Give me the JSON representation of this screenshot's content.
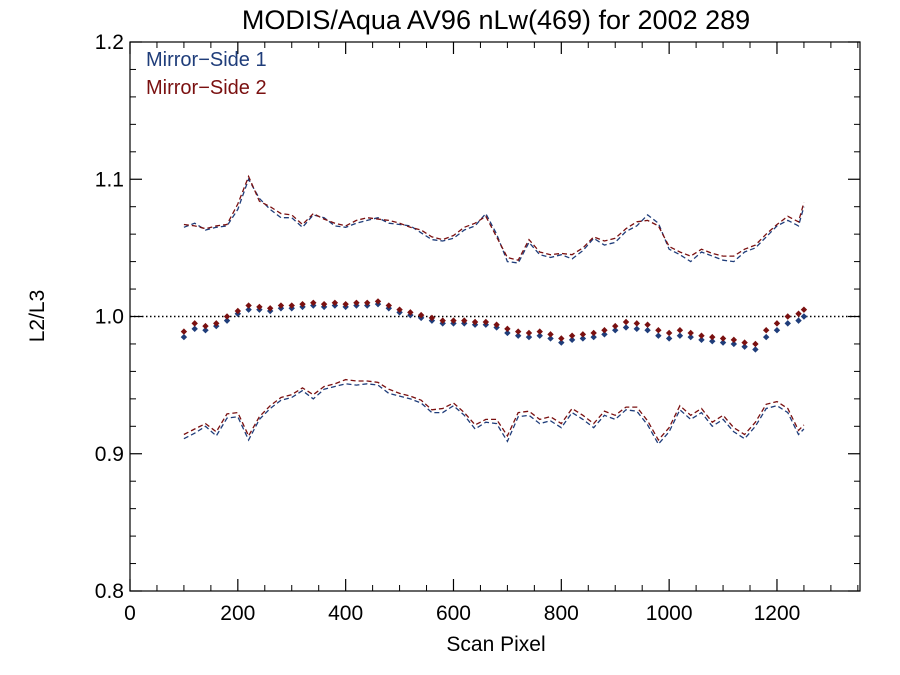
{
  "chart_data": {
    "type": "scatter",
    "title": "MODIS/Aqua AV96 nLw(469) for 2002 289",
    "xlabel": "Scan Pixel",
    "ylabel": "L2/L3",
    "xlim": [
      0,
      1354
    ],
    "ylim": [
      0.8,
      1.2
    ],
    "x_ticks": [
      0,
      200,
      400,
      600,
      800,
      1000,
      1200
    ],
    "x_tick_labels": [
      "0",
      "200",
      "400",
      "600",
      "800",
      "1000",
      "1200"
    ],
    "x_minor_step": 50,
    "y_ticks": [
      0.8,
      0.9,
      1.0,
      1.1,
      1.2
    ],
    "y_tick_labels": [
      "0.8",
      "0.9",
      "1.0",
      "1.1",
      "1.2"
    ],
    "y_minor_step": 0.02,
    "reference_line": {
      "y": 1.0,
      "style": "dotted",
      "color": "#000000"
    },
    "legend": {
      "placement": "top-left",
      "entries": [
        {
          "label": "Mirror−Side 1",
          "color": "#1f3d7a"
        },
        {
          "label": "Mirror−Side 2",
          "color": "#7a1010"
        }
      ]
    },
    "series": [
      {
        "name": "Mirror−Side 1",
        "color": "#1f3d7a",
        "x": [
          100,
          120,
          140,
          160,
          180,
          200,
          220,
          240,
          260,
          280,
          300,
          320,
          340,
          360,
          380,
          400,
          420,
          440,
          460,
          480,
          500,
          520,
          540,
          560,
          580,
          600,
          620,
          640,
          660,
          680,
          700,
          720,
          740,
          760,
          780,
          800,
          820,
          840,
          860,
          880,
          900,
          920,
          940,
          960,
          980,
          1000,
          1020,
          1040,
          1060,
          1080,
          1100,
          1120,
          1140,
          1160,
          1180,
          1200,
          1220,
          1240,
          1250
        ],
        "y": [
          0.985,
          0.991,
          0.99,
          0.993,
          0.997,
          1.002,
          1.005,
          1.005,
          1.004,
          1.006,
          1.006,
          1.007,
          1.008,
          1.007,
          1.008,
          1.007,
          1.008,
          1.008,
          1.009,
          1.006,
          1.003,
          1.001,
          0.999,
          0.997,
          0.995,
          0.995,
          0.995,
          0.994,
          0.994,
          0.992,
          0.988,
          0.986,
          0.985,
          0.986,
          0.984,
          0.981,
          0.983,
          0.984,
          0.985,
          0.987,
          0.99,
          0.992,
          0.991,
          0.99,
          0.986,
          0.984,
          0.986,
          0.985,
          0.983,
          0.982,
          0.981,
          0.98,
          0.978,
          0.976,
          0.985,
          0.99,
          0.995,
          0.997,
          1.0
        ],
        "upper": [
          1.065,
          1.068,
          1.063,
          1.065,
          1.066,
          1.078,
          1.1,
          1.086,
          1.078,
          1.072,
          1.072,
          1.065,
          1.074,
          1.072,
          1.066,
          1.065,
          1.068,
          1.07,
          1.072,
          1.068,
          1.067,
          1.066,
          1.061,
          1.056,
          1.055,
          1.057,
          1.063,
          1.066,
          1.075,
          1.06,
          1.04,
          1.039,
          1.054,
          1.045,
          1.043,
          1.045,
          1.042,
          1.048,
          1.057,
          1.052,
          1.054,
          1.062,
          1.066,
          1.074,
          1.068,
          1.049,
          1.045,
          1.04,
          1.047,
          1.044,
          1.041,
          1.04,
          1.047,
          1.05,
          1.058,
          1.066,
          1.07,
          1.066,
          1.08
        ],
        "lower": [
          0.911,
          0.915,
          0.92,
          0.913,
          0.926,
          0.927,
          0.91,
          0.925,
          0.933,
          0.939,
          0.941,
          0.946,
          0.94,
          0.947,
          0.949,
          0.951,
          0.95,
          0.951,
          0.95,
          0.944,
          0.942,
          0.94,
          0.937,
          0.93,
          0.93,
          0.935,
          0.928,
          0.918,
          0.923,
          0.922,
          0.909,
          0.927,
          0.928,
          0.922,
          0.924,
          0.919,
          0.93,
          0.925,
          0.919,
          0.928,
          0.925,
          0.932,
          0.931,
          0.921,
          0.907,
          0.916,
          0.932,
          0.925,
          0.93,
          0.92,
          0.925,
          0.916,
          0.911,
          0.92,
          0.933,
          0.935,
          0.93,
          0.914,
          0.918
        ]
      },
      {
        "name": "Mirror−Side 2",
        "color": "#7a1010",
        "x": [
          100,
          120,
          140,
          160,
          180,
          200,
          220,
          240,
          260,
          280,
          300,
          320,
          340,
          360,
          380,
          400,
          420,
          440,
          460,
          480,
          500,
          520,
          540,
          560,
          580,
          600,
          620,
          640,
          660,
          680,
          700,
          720,
          740,
          760,
          780,
          800,
          820,
          840,
          860,
          880,
          900,
          920,
          940,
          960,
          980,
          1000,
          1020,
          1040,
          1060,
          1080,
          1100,
          1120,
          1140,
          1160,
          1180,
          1200,
          1220,
          1240,
          1250
        ],
        "y": [
          0.989,
          0.995,
          0.993,
          0.995,
          1.0,
          1.004,
          1.008,
          1.007,
          1.006,
          1.008,
          1.008,
          1.009,
          1.01,
          1.009,
          1.01,
          1.009,
          1.01,
          1.01,
          1.011,
          1.008,
          1.005,
          1.003,
          1.001,
          0.999,
          0.997,
          0.997,
          0.997,
          0.996,
          0.996,
          0.994,
          0.991,
          0.989,
          0.988,
          0.989,
          0.987,
          0.984,
          0.986,
          0.987,
          0.988,
          0.99,
          0.993,
          0.996,
          0.995,
          0.994,
          0.99,
          0.988,
          0.99,
          0.988,
          0.986,
          0.985,
          0.984,
          0.983,
          0.981,
          0.98,
          0.99,
          0.995,
          1.0,
          1.002,
          1.005
        ],
        "upper": [
          1.067,
          1.066,
          1.064,
          1.066,
          1.067,
          1.082,
          1.102,
          1.084,
          1.08,
          1.075,
          1.074,
          1.067,
          1.075,
          1.071,
          1.068,
          1.066,
          1.07,
          1.072,
          1.071,
          1.07,
          1.068,
          1.065,
          1.063,
          1.058,
          1.056,
          1.059,
          1.065,
          1.068,
          1.073,
          1.058,
          1.043,
          1.041,
          1.056,
          1.047,
          1.045,
          1.046,
          1.045,
          1.05,
          1.058,
          1.055,
          1.057,
          1.064,
          1.069,
          1.07,
          1.066,
          1.051,
          1.047,
          1.044,
          1.049,
          1.046,
          1.044,
          1.044,
          1.049,
          1.052,
          1.06,
          1.067,
          1.073,
          1.069,
          1.083
        ],
        "lower": [
          0.914,
          0.918,
          0.922,
          0.916,
          0.929,
          0.93,
          0.913,
          0.927,
          0.935,
          0.941,
          0.943,
          0.948,
          0.943,
          0.949,
          0.951,
          0.954,
          0.953,
          0.953,
          0.952,
          0.947,
          0.944,
          0.942,
          0.939,
          0.932,
          0.933,
          0.937,
          0.93,
          0.921,
          0.925,
          0.925,
          0.913,
          0.93,
          0.931,
          0.925,
          0.927,
          0.922,
          0.933,
          0.928,
          0.922,
          0.931,
          0.928,
          0.934,
          0.934,
          0.924,
          0.91,
          0.919,
          0.935,
          0.928,
          0.933,
          0.923,
          0.928,
          0.919,
          0.914,
          0.923,
          0.936,
          0.938,
          0.933,
          0.917,
          0.921
        ]
      }
    ]
  }
}
